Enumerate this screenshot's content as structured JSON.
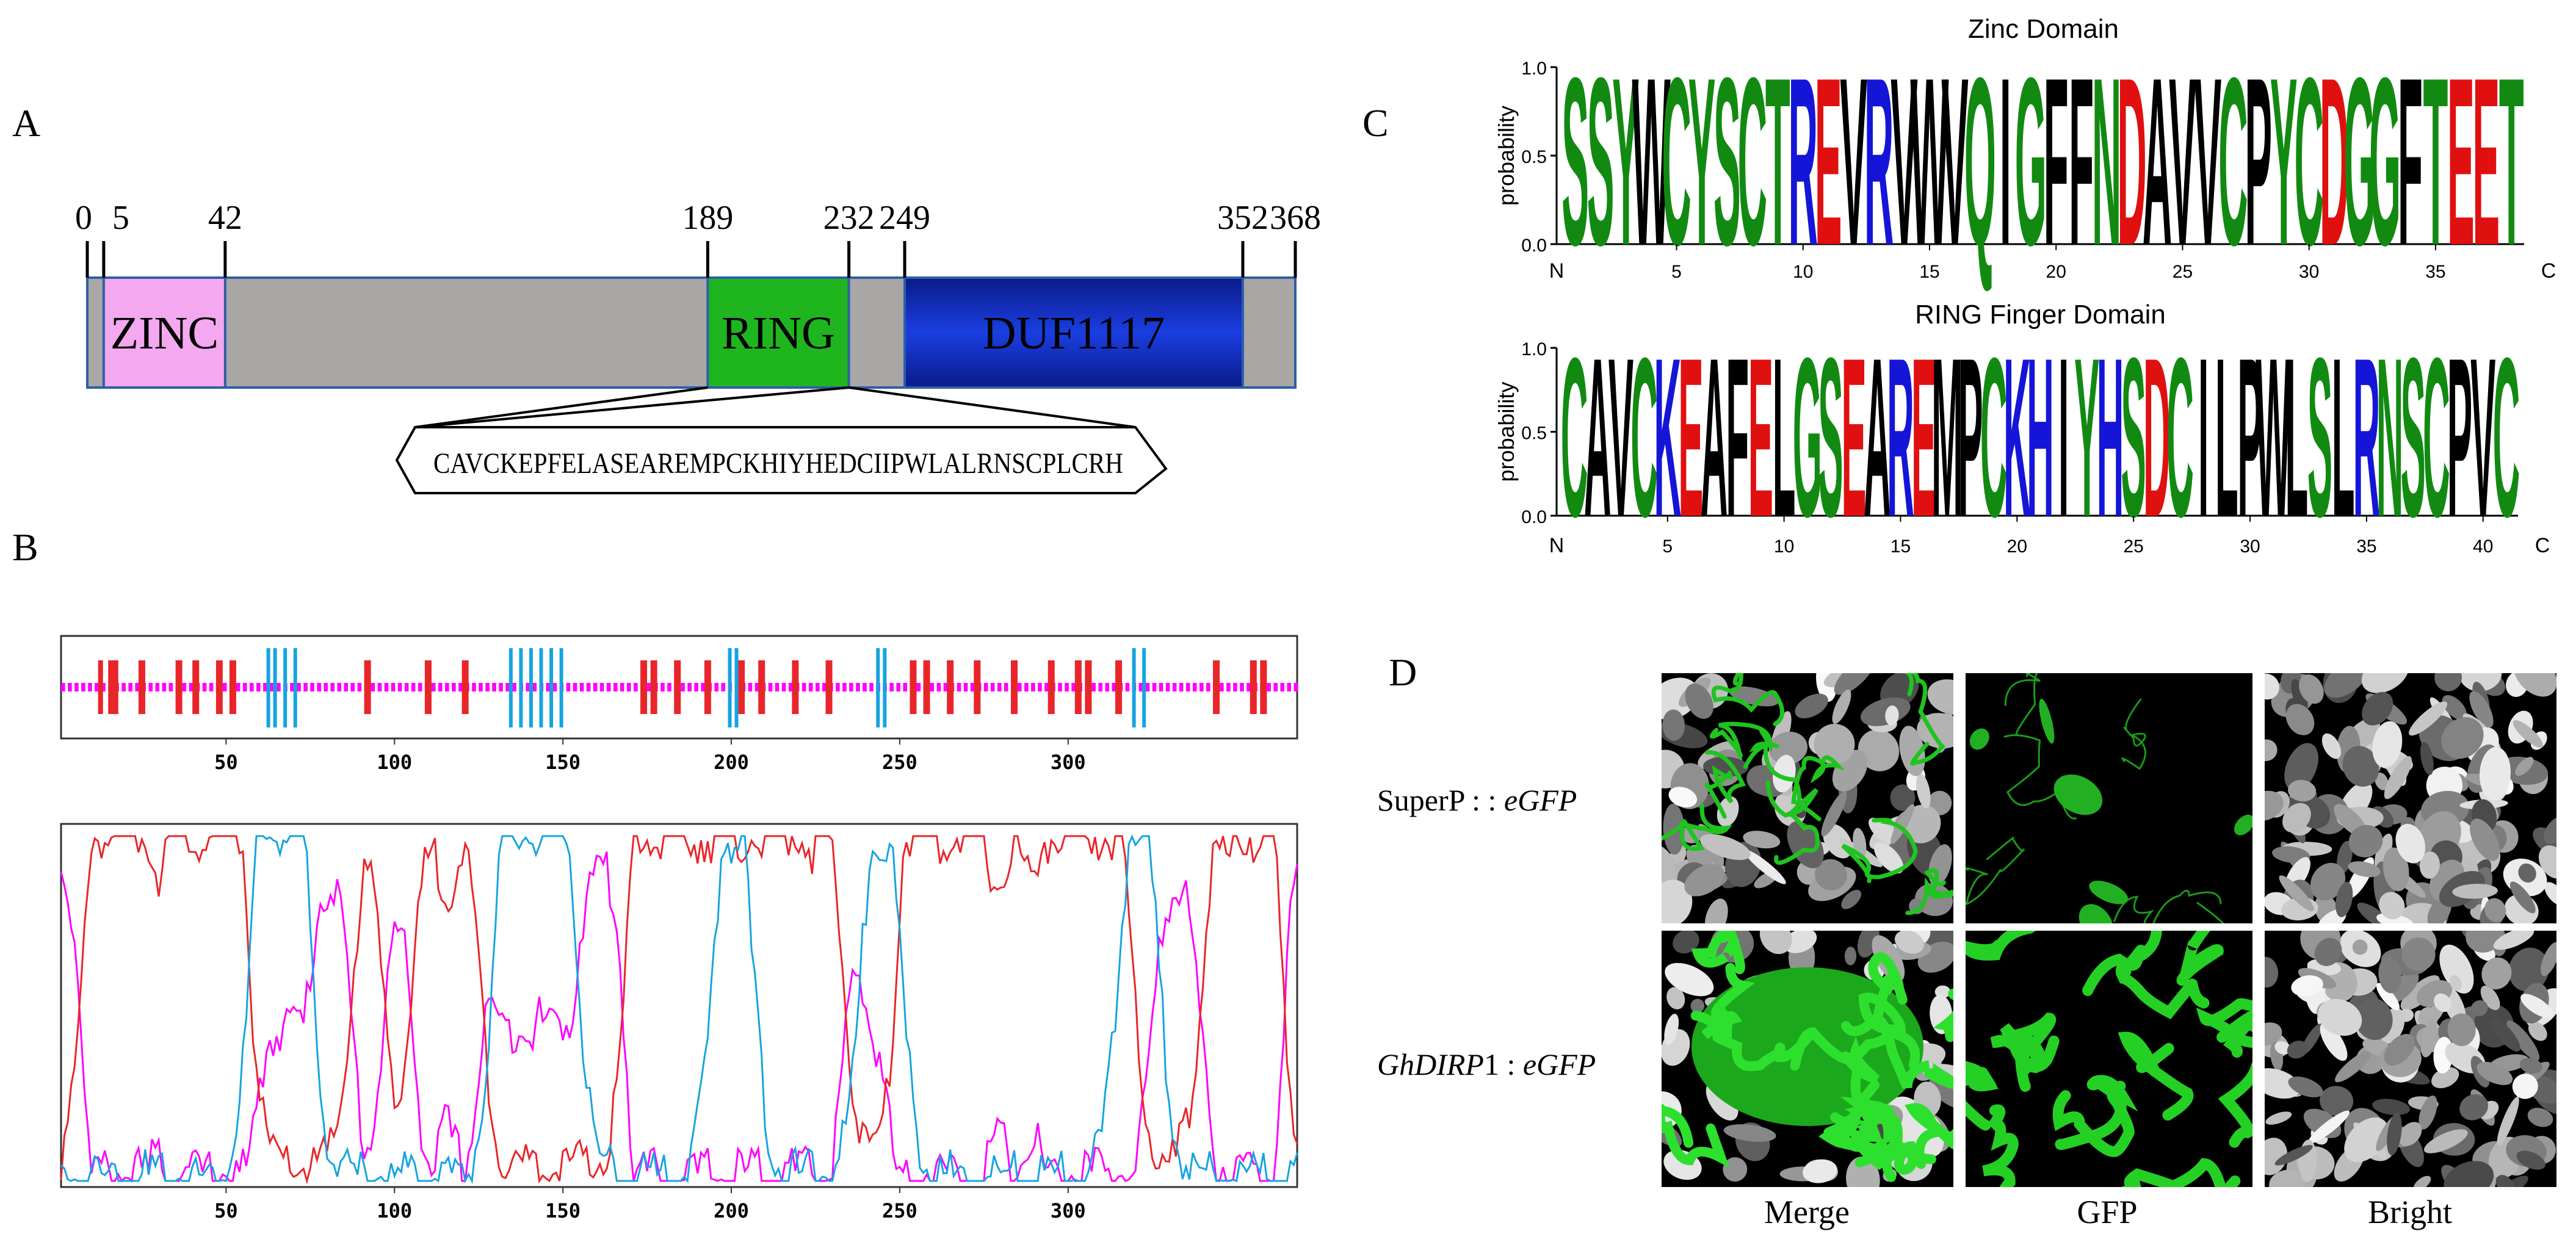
{
  "panels": {
    "A": "A",
    "B": "B",
    "C": "C",
    "D": "D"
  },
  "panelA": {
    "ticks": [
      "0",
      "5",
      "42",
      "189",
      "232",
      "249",
      "352",
      "368"
    ],
    "tick_values": [
      0,
      5,
      42,
      189,
      232,
      249,
      352,
      368
    ],
    "domains": [
      {
        "name": "ZINC",
        "start": 5,
        "end": 42,
        "color": "#f4a8f0"
      },
      {
        "name": "RING",
        "start": 189,
        "end": 232,
        "color": "#1fb51f"
      },
      {
        "name": "DUF1117",
        "start": 249,
        "end": 352,
        "color": "#1030c8"
      }
    ],
    "backbone_color": "#a9a6a6",
    "ring_sequence": "CAVCKEPFELASEAREMPCKHIYHEDCIIPWLALRNSCPLCRH"
  },
  "panelB": {
    "x_ticks": [
      "50",
      "100",
      "150",
      "200",
      "250",
      "300"
    ],
    "x_tick_values": [
      50,
      100,
      150,
      200,
      250,
      300
    ],
    "length": 368,
    "colors": {
      "helix": "#e8262a",
      "strand": "#16a4e0",
      "coil": "#ff00ff"
    },
    "helix_segments": [
      [
        12,
        13
      ],
      [
        15,
        18
      ],
      [
        24,
        26
      ],
      [
        35,
        37
      ],
      [
        40,
        42
      ],
      [
        47,
        49
      ],
      [
        51,
        53
      ],
      [
        91,
        93
      ],
      [
        109,
        111
      ],
      [
        120,
        122
      ],
      [
        173,
        175
      ],
      [
        176,
        178
      ],
      [
        183,
        185
      ],
      [
        192,
        194
      ],
      [
        202,
        204
      ],
      [
        208,
        210
      ],
      [
        218,
        220
      ],
      [
        228,
        230
      ],
      [
        253,
        255
      ],
      [
        257,
        259
      ],
      [
        264,
        266
      ],
      [
        272,
        274
      ],
      [
        283,
        285
      ],
      [
        294,
        296
      ],
      [
        302,
        304
      ],
      [
        305,
        307
      ],
      [
        314,
        316
      ],
      [
        343,
        345
      ],
      [
        354,
        356
      ],
      [
        357,
        359
      ]
    ],
    "strand_segments": [
      [
        62,
        63
      ],
      [
        64,
        65
      ],
      [
        67,
        68
      ],
      [
        70,
        71
      ],
      [
        134,
        135
      ],
      [
        137,
        138
      ],
      [
        140,
        141
      ],
      [
        143,
        144
      ],
      [
        146,
        147
      ],
      [
        149,
        150
      ],
      [
        199,
        200
      ],
      [
        201,
        202
      ],
      [
        243,
        244
      ],
      [
        245,
        246
      ],
      [
        319,
        320
      ],
      [
        322,
        323
      ]
    ]
  },
  "panelC": {
    "logos": [
      {
        "title": "Zinc Domain",
        "ylabel": "probability",
        "yticks": [
          "1.0",
          "0.5",
          "0.0"
        ],
        "n_label": "N",
        "c_label": "C",
        "xticks": [
          "5",
          "10",
          "15",
          "20",
          "25",
          "30",
          "35"
        ],
        "sequence": "SSYWCYSCTREVRVWVQIGFFNDAVVCPYCDGGFTEET"
      },
      {
        "title": "RING Finger Domain",
        "ylabel": "probability",
        "yticks": [
          "1.0",
          "0.5",
          "0.0"
        ],
        "n_label": "N",
        "c_label": "C",
        "xticks": [
          "5",
          "10",
          "15",
          "20",
          "25",
          "30",
          "35",
          "40"
        ],
        "sequence": "CAVCKEAFELGSEAREMPCKHIYHSDCILPWLSLRNSCPVC"
      }
    ],
    "residue_colors": {
      "green": "#128a12",
      "blue": "#1515d8",
      "red": "#e01010",
      "purple": "#a020a0",
      "black": "#000000"
    }
  },
  "panelD": {
    "rows": [
      {
        "prefix": "SuperP : : ",
        "italic": "eGFP"
      },
      {
        "prefix_italic": "GhDIRP",
        "prefix": "1 : ",
        "italic": "eGFP"
      }
    ],
    "columns": [
      "Merge",
      "GFP",
      "Bright"
    ]
  }
}
